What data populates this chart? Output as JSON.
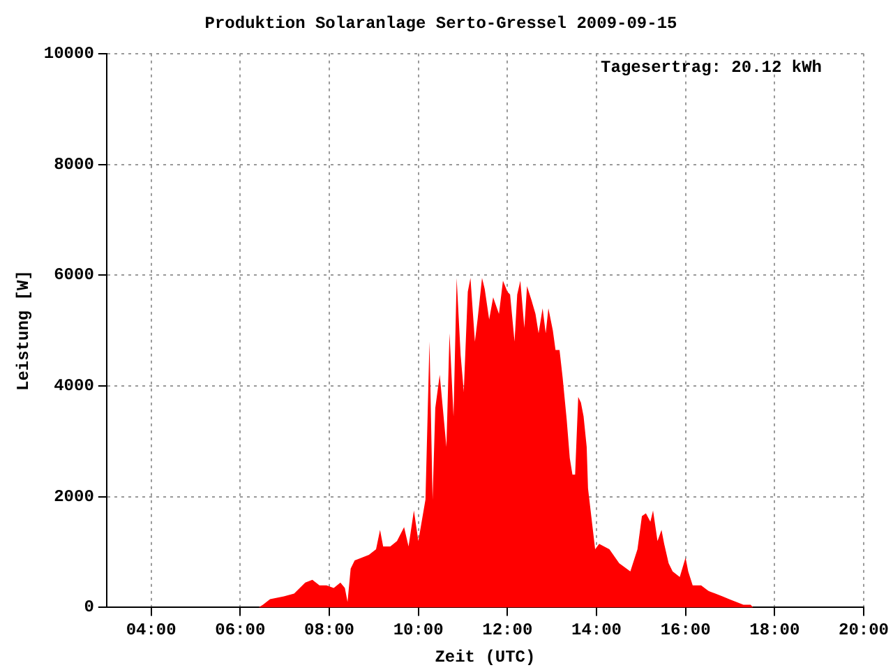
{
  "chart_data": {
    "type": "area",
    "title": "Produktion Solaranlage Serto-Gressel 2009-09-15",
    "xlabel": "Zeit (UTC)",
    "ylabel": "Leistung [W]",
    "annotations": [
      "Tagesertrag: 20.12 kWh"
    ],
    "x": [
      6.41,
      6.51,
      6.67,
      6.98,
      7.21,
      7.46,
      7.62,
      7.78,
      7.94,
      8.1,
      8.25,
      8.35,
      8.41,
      8.48,
      8.57,
      8.73,
      8.89,
      9.05,
      9.14,
      9.21,
      9.37,
      9.52,
      9.68,
      9.78,
      9.9,
      10.0,
      10.16,
      10.25,
      10.32,
      10.38,
      10.48,
      10.63,
      10.7,
      10.79,
      10.86,
      10.95,
      11.02,
      11.11,
      11.17,
      11.27,
      11.33,
      11.43,
      11.49,
      11.59,
      11.68,
      11.81,
      11.9,
      12.0,
      12.06,
      12.16,
      12.22,
      12.29,
      12.38,
      12.44,
      12.54,
      12.63,
      12.7,
      12.79,
      12.86,
      12.92,
      13.02,
      13.08,
      13.17,
      13.24,
      13.33,
      13.4,
      13.46,
      13.52,
      13.59,
      13.65,
      13.71,
      13.78,
      13.81,
      13.97,
      14.06,
      14.29,
      14.51,
      14.76,
      14.92,
      15.02,
      15.11,
      15.21,
      15.27,
      15.37,
      15.46,
      15.52,
      15.62,
      15.71,
      15.87,
      16.0,
      16.06,
      16.16,
      16.35,
      16.51,
      16.67,
      16.83,
      16.98,
      17.14,
      17.3,
      17.46,
      17.52
    ],
    "series": [
      {
        "color": "#ff0000",
        "values": [
          0,
          50,
          150,
          200,
          250,
          450,
          500,
          400,
          400,
          350,
          450,
          350,
          100,
          700,
          850,
          900,
          950,
          1050,
          1400,
          1100,
          1100,
          1200,
          1450,
          1100,
          1750,
          1200,
          1950,
          4800,
          1950,
          3600,
          4200,
          2900,
          4950,
          3450,
          5950,
          4550,
          3900,
          5700,
          5950,
          4800,
          5200,
          5950,
          5750,
          5200,
          5600,
          5300,
          5900,
          5700,
          5650,
          4800,
          5650,
          5900,
          5050,
          5800,
          5550,
          5300,
          4950,
          5400,
          4950,
          5400,
          5000,
          4650,
          4650,
          4150,
          3400,
          2700,
          2400,
          2400,
          3800,
          3700,
          3450,
          2900,
          2150,
          1050,
          1150,
          1050,
          800,
          650,
          1050,
          1650,
          1700,
          1550,
          1750,
          1200,
          1400,
          1150,
          800,
          650,
          550,
          900,
          650,
          400,
          400,
          300,
          250,
          200,
          150,
          100,
          50,
          50,
          0
        ]
      }
    ],
    "xlim": [
      3,
      20
    ],
    "xticks": [
      {
        "value": 4,
        "label": "04:00"
      },
      {
        "value": 6,
        "label": "06:00"
      },
      {
        "value": 8,
        "label": "08:00"
      },
      {
        "value": 10,
        "label": "10:00"
      },
      {
        "value": 12,
        "label": "12:00"
      },
      {
        "value": 14,
        "label": "14:00"
      },
      {
        "value": 16,
        "label": "16:00"
      },
      {
        "value": 18,
        "label": "18:00"
      },
      {
        "value": 20,
        "label": "20:00"
      }
    ],
    "ylim": [
      0,
      10000
    ],
    "yticks": [
      0,
      2000,
      4000,
      6000,
      8000,
      10000
    ],
    "grid": true
  }
}
